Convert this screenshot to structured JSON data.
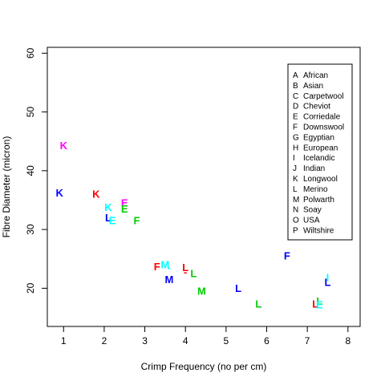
{
  "chart_data": {
    "type": "scatter",
    "xlabel": "Crimp Frequency (no per cm)",
    "ylabel": "Fibre Diameter (micron)",
    "xlim": [
      0.6,
      8.3
    ],
    "ylim": [
      13.5,
      61
    ],
    "x_ticks": [
      "1",
      "2",
      "3",
      "4",
      "5",
      "6",
      "7",
      "8"
    ],
    "y_ticks": [
      "20",
      "30",
      "40",
      "50",
      "60"
    ],
    "grid": false,
    "legend_position": "top-right",
    "colors": {
      "black": "#000000",
      "red": "#ff0000",
      "green": "#00cd00",
      "blue": "#0000ff",
      "cyan": "#00ffff",
      "magenta": "#ff00ff"
    },
    "legend": [
      {
        "code": "A",
        "name": "African"
      },
      {
        "code": "B",
        "name": "Asian"
      },
      {
        "code": "C",
        "name": "Carpetwool"
      },
      {
        "code": "D",
        "name": "Cheviot"
      },
      {
        "code": "E",
        "name": "Corriedale"
      },
      {
        "code": "F",
        "name": "Downswool"
      },
      {
        "code": "G",
        "name": "Egyptian"
      },
      {
        "code": "H",
        "name": "European"
      },
      {
        "code": "I",
        "name": "Icelandic"
      },
      {
        "code": "J",
        "name": "Indian"
      },
      {
        "code": "K",
        "name": "Longwool"
      },
      {
        "code": "L",
        "name": "Merino"
      },
      {
        "code": "M",
        "name": "Polwarth"
      },
      {
        "code": "N",
        "name": "Soay"
      },
      {
        "code": "O",
        "name": "USA"
      },
      {
        "code": "P",
        "name": "Wiltshire"
      }
    ],
    "points": [
      {
        "label": "K",
        "x": 1.0,
        "y": 44.3,
        "color": "magenta"
      },
      {
        "label": "K",
        "x": 0.9,
        "y": 36.2,
        "color": "blue"
      },
      {
        "label": "K",
        "x": 1.8,
        "y": 36.0,
        "color": "red"
      },
      {
        "label": "E",
        "x": 2.5,
        "y": 34.5,
        "color": "magenta"
      },
      {
        "label": "K",
        "x": 2.1,
        "y": 33.8,
        "color": "cyan"
      },
      {
        "label": "E",
        "x": 2.5,
        "y": 33.5,
        "color": "green"
      },
      {
        "label": "L",
        "x": 2.1,
        "y": 32.0,
        "color": "blue"
      },
      {
        "label": "E",
        "x": 2.2,
        "y": 31.5,
        "color": "cyan"
      },
      {
        "label": "F",
        "x": 2.8,
        "y": 31.5,
        "color": "green"
      },
      {
        "label": "M",
        "x": 3.5,
        "y": 24.0,
        "color": "cyan"
      },
      {
        "label": "-",
        "x": 3.6,
        "y": 23.5,
        "color": "cyan"
      },
      {
        "label": "F",
        "x": 3.3,
        "y": 23.7,
        "color": "red"
      },
      {
        "label": "L",
        "x": 4.0,
        "y": 23.5,
        "color": "red"
      },
      {
        "label": "-",
        "x": 4.0,
        "y": 22.8,
        "color": "red"
      },
      {
        "label": "L",
        "x": 4.2,
        "y": 22.5,
        "color": "green"
      },
      {
        "label": "M",
        "x": 3.6,
        "y": 21.5,
        "color": "blue"
      },
      {
        "label": "M",
        "x": 4.4,
        "y": 19.5,
        "color": "green"
      },
      {
        "label": "L",
        "x": 5.3,
        "y": 20.0,
        "color": "blue"
      },
      {
        "label": "F",
        "x": 6.5,
        "y": 25.5,
        "color": "blue"
      },
      {
        "label": "L",
        "x": 5.8,
        "y": 17.3,
        "color": "green"
      },
      {
        "label": "I",
        "x": 7.5,
        "y": 21.8,
        "color": "cyan"
      },
      {
        "label": "L",
        "x": 7.5,
        "y": 21.0,
        "color": "blue"
      },
      {
        "label": "L",
        "x": 7.3,
        "y": 17.8,
        "color": "green"
      },
      {
        "label": "L",
        "x": 7.2,
        "y": 17.3,
        "color": "red"
      },
      {
        "label": "E",
        "x": 7.3,
        "y": 17.2,
        "color": "cyan"
      }
    ]
  }
}
